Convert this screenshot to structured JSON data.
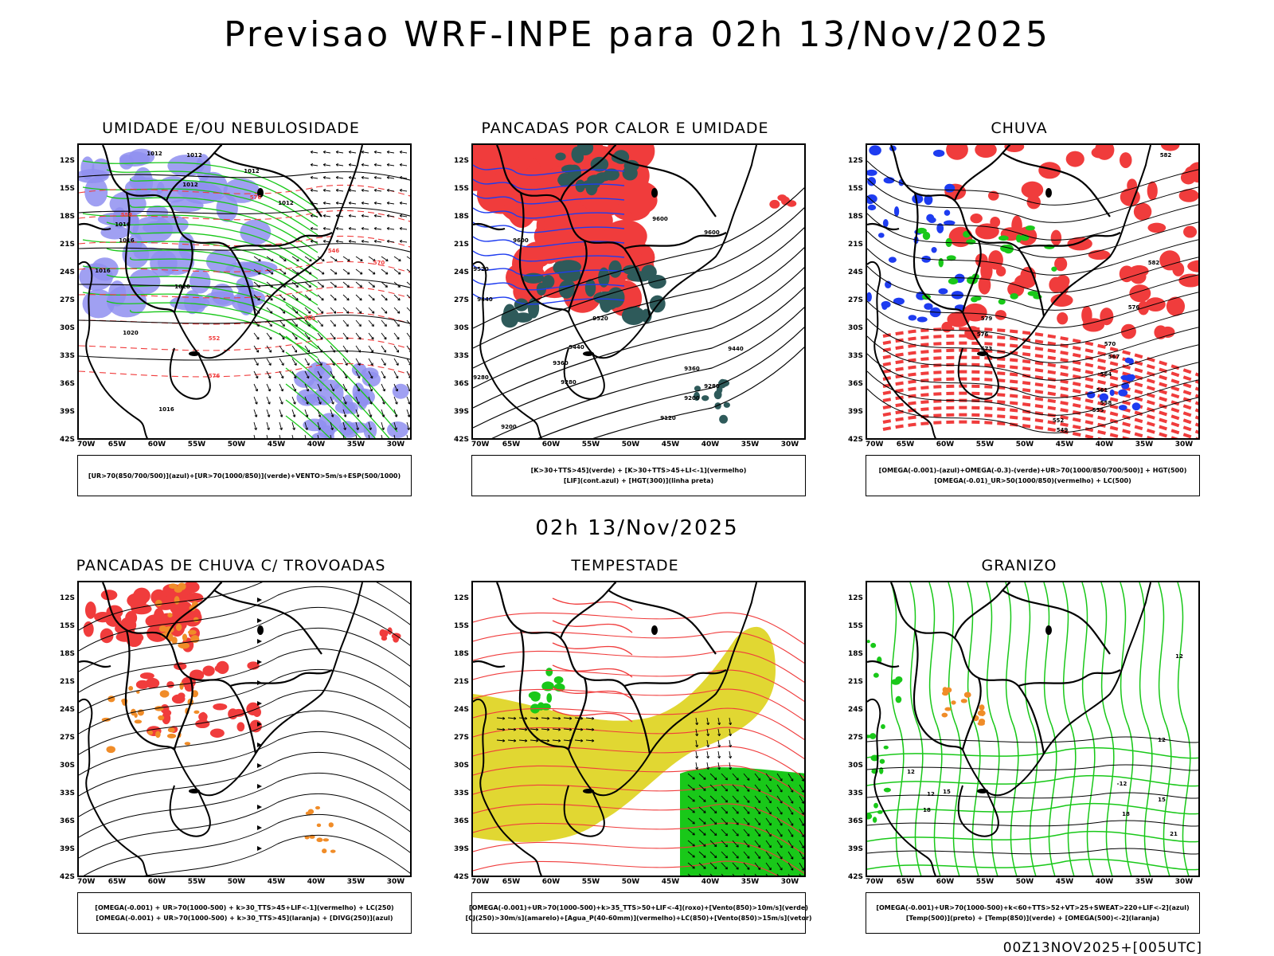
{
  "header": {
    "title": "Previsao WRF-INPE  para 02h 13/Nov/2025"
  },
  "middle_time": "02h 13/Nov/2025",
  "footer": "00Z13NOV2025+[005UTC]",
  "axes": {
    "lat_labels": [
      "12S",
      "15S",
      "18S",
      "21S",
      "24S",
      "27S",
      "30S",
      "33S",
      "36S",
      "39S",
      "42S"
    ],
    "lon_labels": [
      "70W",
      "65W",
      "60W",
      "55W",
      "50W",
      "45W",
      "40W",
      "35W",
      "30W"
    ]
  },
  "colors": {
    "blue_fill": "#8f8ff0",
    "green": "#19c819",
    "red": "#f03c3c",
    "dark_teal": "#2e5a5a",
    "blue": "#1e3cf0",
    "orange": "#f08c28",
    "yellow": "#e1d732"
  },
  "panels": [
    {
      "title": "UMIDADE E/OU NEBULOSIDADE",
      "legend": [
        "[UR>70(850/700/500)](azul)+[UR>70(1000/850)](verde)+VENTO>5m/s+ESP(500/1000)"
      ],
      "labels": [
        "1012",
        "1012",
        "1012",
        "1012",
        "1012",
        "1016",
        "1016",
        "1016",
        "1020",
        "1020",
        "576",
        "576",
        "570",
        "564",
        "552",
        "558",
        "546",
        "1016"
      ]
    },
    {
      "title": "PANCADAS POR CALOR E UMIDADE",
      "legend": [
        "[K>30+TTS>45](verde)  +  [K>30+TTS>45+LI<-1](vermelho)",
        "[LIF](cont.azul)  +  [HGT(300)](linha preta)"
      ],
      "labels": [
        "9600",
        "9600",
        "9600",
        "9520",
        "9440",
        "9520",
        "9440",
        "9440",
        "9360",
        "9360",
        "9280",
        "9280",
        "9280",
        "9200",
        "9120",
        "9200"
      ]
    },
    {
      "title": "CHUVA",
      "legend": [
        "[OMEGA(-0.001)-(azul)+OMEGA(-0.3)-(verde)+UR>70(1000/850/700/500)]  +  HGT(500)",
        "[OMEGA(-0.01)_UR>50(1000/850)(vermelho)  +  LC(500)"
      ],
      "labels": [
        "582",
        "582",
        "579",
        "576",
        "573",
        "570",
        "567",
        "564",
        "561",
        "558",
        "555",
        "552",
        "549",
        "576"
      ]
    },
    {
      "title": "PANCADAS DE CHUVA C/ TROVOADAS",
      "legend": [
        "[OMEGA(-0.001)  +  UR>70(1000-500)  +  k>30_TTS>45+LIF<-1](vermelho)  +  LC(250)",
        "[OMEGA(-0.001)  +  UR>70(1000-500)  +  k>30_TTS>45](laranja)  +  [DIVG(250)](azul)"
      ],
      "labels": []
    },
    {
      "title": "TEMPESTADE",
      "legend": [
        "[OMEGA(-0.001)+UR>70(1000-500)+k>35_TTS>50+LIF<-4](roxo)+[Vento(850)>10m/s](verde)",
        "[CJ(250)>30m/s](amarelo)+[Agua_P(40-60mm)](vermelho)+LC(850)+[Vento(850)>15m/s](vetor)"
      ],
      "labels": []
    },
    {
      "title": "GRANIZO",
      "legend": [
        "[OMEGA(-0.001)+UR>70(1000-500)+k<60+TTS>52+VT>25+SWEAT>220+LIF<-2](azul)",
        "[Temp(500)](preto)  +  [Temp(850)](verde)  +  [OMEGA(500)<-2](laranja)"
      ],
      "labels": [
        "12",
        "12",
        "12",
        "12",
        "15",
        "15",
        "18",
        "18",
        "21",
        "-12"
      ]
    }
  ]
}
